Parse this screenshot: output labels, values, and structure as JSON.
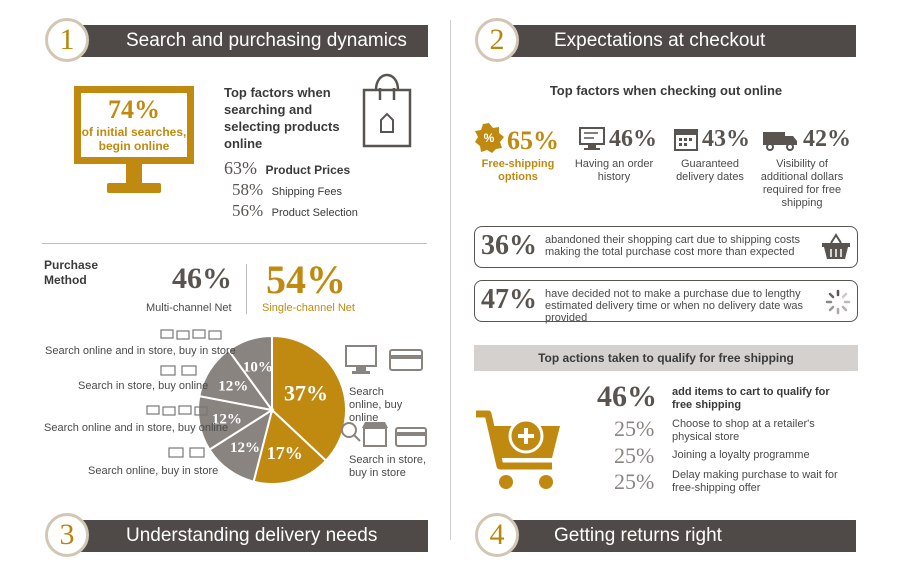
{
  "sections": {
    "s1": {
      "num": "1",
      "title": "Search and purchasing dynamics"
    },
    "s2": {
      "num": "2",
      "title": "Expectations at checkout"
    },
    "s3": {
      "num": "3",
      "title": "Understanding delivery needs"
    },
    "s4": {
      "num": "4",
      "title": "Getting returns right"
    }
  },
  "search": {
    "monitor_pct": "74%",
    "monitor_text": "of initial searches, begin online",
    "factors_title": "Top factors when searching and selecting products online",
    "factors": [
      {
        "pct": "63%",
        "label": "Product Prices"
      },
      {
        "pct": "58%",
        "label": "Shipping Fees"
      },
      {
        "pct": "56%",
        "label": "Product Selection"
      }
    ]
  },
  "purchase": {
    "title": "Purchase Method",
    "multi_pct": "46%",
    "multi_label": "Multi-channel Net",
    "single_pct": "54%",
    "single_label": "Single-channel Net",
    "labels": {
      "l1": "Search online and in store, buy in store",
      "l2": "Search in store, buy online",
      "l3": "Search online and in store, buy online",
      "l4": "Search online, buy in store",
      "r1": "Search online, buy online",
      "r2": "Search in store, buy in store"
    }
  },
  "chart_data": {
    "type": "pie",
    "slices": [
      {
        "label": "Search online, buy online",
        "value": 37,
        "text": "37%",
        "color": "#c08a10"
      },
      {
        "label": "Search in store, buy in store",
        "value": 17,
        "text": "17%",
        "color": "#c08a10"
      },
      {
        "label": "Search online, buy in store",
        "value": 12,
        "text": "12%",
        "color": "#8a8481"
      },
      {
        "label": "Search online and in store, buy online",
        "value": 12,
        "text": "12%",
        "color": "#8a8481"
      },
      {
        "label": "Search in store, buy online",
        "value": 12,
        "text": "12%",
        "color": "#8a8481"
      },
      {
        "label": "Search online and in store, buy in store",
        "value": 10,
        "text": "10%",
        "color": "#8a8481"
      }
    ]
  },
  "checkout": {
    "title": "Top factors when checking out online",
    "factors": [
      {
        "pct": "65%",
        "label": "Free-shipping options",
        "icon": "percent-badge-icon"
      },
      {
        "pct": "46%",
        "label": "Having an order history",
        "icon": "order-history-icon"
      },
      {
        "pct": "43%",
        "label": "Guaranteed delivery dates",
        "icon": "calendar-icon"
      },
      {
        "pct": "42%",
        "label": "Visibility of additional dollars required for free shipping",
        "icon": "delivery-truck-icon"
      }
    ],
    "box1_pct": "36%",
    "box1_text": "abandoned their shopping cart due to shipping costs making the total purchase cost more than expected",
    "box2_pct": "47%",
    "box2_text": "have decided not to make a purchase due to lengthy estimated delivery time or when no delivery date was provided"
  },
  "free_shipping": {
    "title": "Top actions taken to qualify for free shipping",
    "actions": [
      {
        "pct": "46%",
        "label": "add items to cart to qualify for free shipping"
      },
      {
        "pct": "25%",
        "label": "Choose to shop at a retailer's physical store"
      },
      {
        "pct": "25%",
        "label": "Joining a loyalty programme"
      },
      {
        "pct": "25%",
        "label": "Delay making purchase to wait for free-shipping offer"
      }
    ]
  }
}
